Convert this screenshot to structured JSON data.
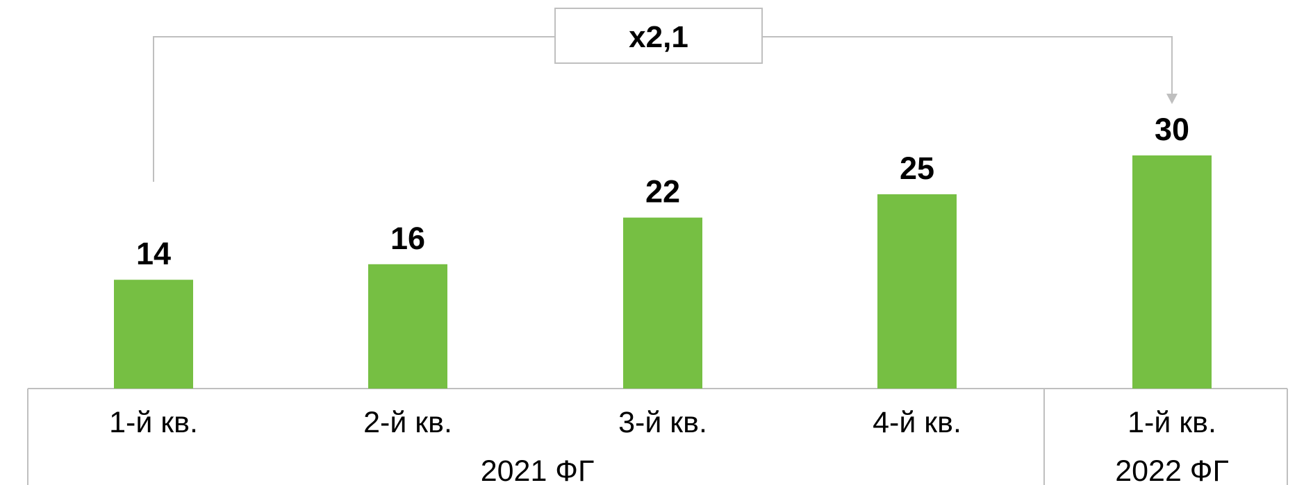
{
  "chart_data": {
    "type": "bar",
    "title": "",
    "xlabel": "",
    "ylabel": "",
    "categories": [
      "1-й кв.",
      "2-й кв.",
      "3-й кв.",
      "4-й кв.",
      "1-й кв."
    ],
    "values": [
      14,
      16,
      22,
      25,
      30
    ],
    "value_labels": [
      "14",
      "16",
      "22",
      "25",
      "30"
    ],
    "groups": [
      {
        "label": "2021 ФГ",
        "count": 4
      },
      {
        "label": "2022 ФГ",
        "count": 1
      }
    ],
    "ylim": [
      0,
      30
    ],
    "grid": false,
    "bar_color": "#76BF43",
    "annotation": {
      "text": "x2,1",
      "from_category_index": 0,
      "to_category_index": 4,
      "line_color": "#BFBFBF",
      "arrow": true
    }
  }
}
